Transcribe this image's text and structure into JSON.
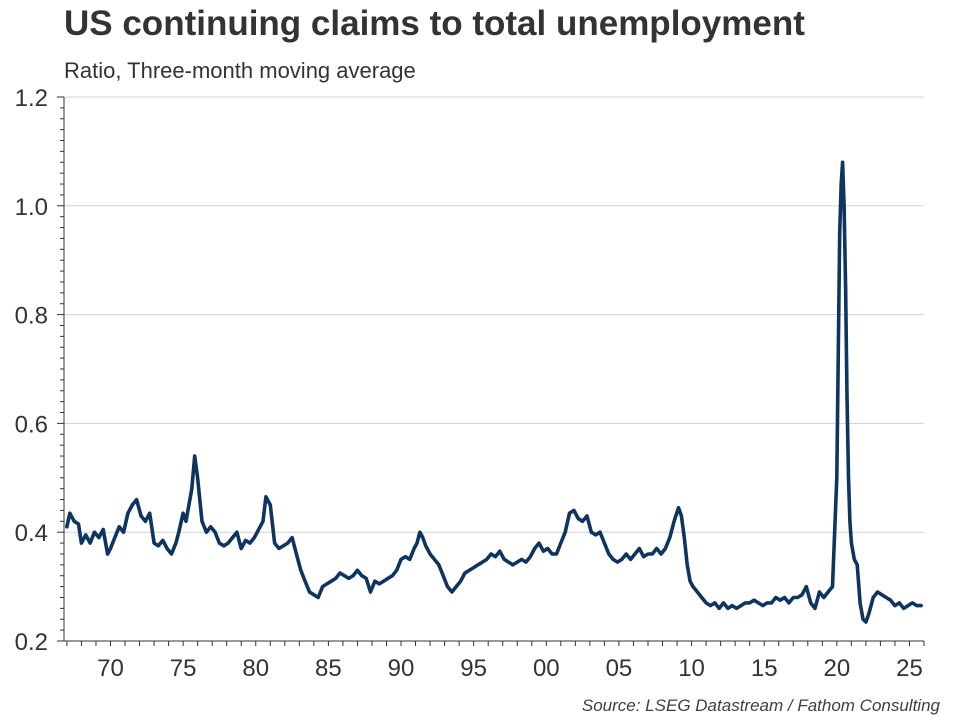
{
  "title": "US continuing claims to total unemployment",
  "subtitle": "Ratio, Three-month moving average",
  "source": "Source: LSEG Datastream / Fathom Consulting",
  "colors": {
    "line": "#0e3460",
    "grid": "#d0d0d0",
    "axis": "#333333",
    "text": "#333333"
  },
  "chart_data": {
    "type": "line",
    "title": "US continuing claims to total unemployment",
    "subtitle": "Ratio, Three-month moving average",
    "xlabel": "",
    "ylabel": "",
    "xlim": [
      1966.8,
      2026.0
    ],
    "ylim": [
      0.2,
      1.2
    ],
    "grid": true,
    "legend": "none",
    "x_ticks": [
      1970,
      1975,
      1980,
      1985,
      1990,
      1995,
      2000,
      2005,
      2010,
      2015,
      2020,
      2025
    ],
    "x_tick_labels": [
      "70",
      "75",
      "80",
      "85",
      "90",
      "95",
      "00",
      "05",
      "10",
      "15",
      "20",
      "25"
    ],
    "y_ticks": [
      0.2,
      0.4,
      0.6,
      0.8,
      1.0,
      1.2
    ],
    "y_tick_labels": [
      "0.2",
      "0.4",
      "0.6",
      "0.8",
      "1.0",
      "1.2"
    ],
    "series": [
      {
        "x": [
          1967.0,
          1967.2,
          1967.5,
          1967.8,
          1968.0,
          1968.3,
          1968.6,
          1968.9,
          1969.2,
          1969.5,
          1969.8,
          1970.0,
          1970.3,
          1970.6,
          1970.9,
          1971.2,
          1971.5,
          1971.8,
          1972.1,
          1972.4,
          1972.7,
          1973.0,
          1973.3,
          1973.6,
          1973.9,
          1974.2,
          1974.5,
          1974.7,
          1975.0,
          1975.2,
          1975.4,
          1975.6,
          1975.8,
          1976.0,
          1976.3,
          1976.6,
          1976.9,
          1977.2,
          1977.5,
          1977.8,
          1978.1,
          1978.4,
          1978.7,
          1979.0,
          1979.3,
          1979.6,
          1979.9,
          1980.1,
          1980.3,
          1980.5,
          1980.7,
          1981.0,
          1981.3,
          1981.6,
          1981.9,
          1982.2,
          1982.5,
          1982.8,
          1983.1,
          1983.4,
          1983.7,
          1984.0,
          1984.3,
          1984.6,
          1984.9,
          1985.2,
          1985.5,
          1985.8,
          1986.1,
          1986.4,
          1986.7,
          1987.0,
          1987.3,
          1987.6,
          1987.9,
          1988.2,
          1988.5,
          1988.8,
          1989.1,
          1989.4,
          1989.7,
          1990.0,
          1990.3,
          1990.6,
          1990.9,
          1991.1,
          1991.3,
          1991.5,
          1991.7,
          1992.0,
          1992.3,
          1992.6,
          1992.9,
          1993.2,
          1993.5,
          1993.8,
          1994.1,
          1994.4,
          1994.7,
          1995.0,
          1995.3,
          1995.6,
          1995.9,
          1996.2,
          1996.5,
          1996.8,
          1997.1,
          1997.4,
          1997.7,
          1998.0,
          1998.3,
          1998.6,
          1998.9,
          1999.2,
          1999.5,
          1999.8,
          2000.1,
          2000.4,
          2000.7,
          2001.0,
          2001.3,
          2001.6,
          2001.9,
          2002.2,
          2002.5,
          2002.8,
          2003.1,
          2003.4,
          2003.7,
          2004.0,
          2004.3,
          2004.6,
          2004.9,
          2005.2,
          2005.5,
          2005.8,
          2006.1,
          2006.4,
          2006.7,
          2007.0,
          2007.3,
          2007.6,
          2007.9,
          2008.2,
          2008.5,
          2008.8,
          2009.1,
          2009.3,
          2009.5,
          2009.7,
          2009.9,
          2010.1,
          2010.4,
          2010.7,
          2011.0,
          2011.3,
          2011.6,
          2011.9,
          2012.2,
          2012.5,
          2012.8,
          2013.1,
          2013.4,
          2013.7,
          2014.0,
          2014.3,
          2014.6,
          2014.9,
          2015.2,
          2015.5,
          2015.8,
          2016.1,
          2016.4,
          2016.7,
          2017.0,
          2017.3,
          2017.6,
          2017.9,
          2018.2,
          2018.5,
          2018.8,
          2019.1,
          2019.4,
          2019.7,
          2020.0,
          2020.2,
          2020.3,
          2020.4,
          2020.5,
          2020.6,
          2020.7,
          2020.8,
          2020.9,
          2021.0,
          2021.2,
          2021.4,
          2021.6,
          2021.8,
          2022.0,
          2022.2,
          2022.5,
          2022.8,
          2023.1,
          2023.4,
          2023.7,
          2024.0,
          2024.3,
          2024.6,
          2024.9,
          2025.2,
          2025.5,
          2025.8
        ],
        "y": [
          0.41,
          0.435,
          0.42,
          0.415,
          0.38,
          0.395,
          0.38,
          0.4,
          0.39,
          0.405,
          0.36,
          0.37,
          0.39,
          0.41,
          0.4,
          0.435,
          0.45,
          0.46,
          0.43,
          0.42,
          0.435,
          0.38,
          0.375,
          0.385,
          0.37,
          0.36,
          0.38,
          0.4,
          0.435,
          0.42,
          0.45,
          0.48,
          0.54,
          0.5,
          0.42,
          0.4,
          0.41,
          0.4,
          0.38,
          0.375,
          0.38,
          0.39,
          0.4,
          0.37,
          0.385,
          0.38,
          0.39,
          0.4,
          0.41,
          0.42,
          0.465,
          0.45,
          0.38,
          0.37,
          0.375,
          0.38,
          0.39,
          0.36,
          0.33,
          0.31,
          0.29,
          0.285,
          0.28,
          0.3,
          0.305,
          0.31,
          0.315,
          0.325,
          0.32,
          0.315,
          0.32,
          0.33,
          0.32,
          0.315,
          0.29,
          0.31,
          0.305,
          0.31,
          0.315,
          0.32,
          0.33,
          0.35,
          0.355,
          0.35,
          0.37,
          0.38,
          0.4,
          0.39,
          0.375,
          0.36,
          0.35,
          0.34,
          0.32,
          0.3,
          0.29,
          0.3,
          0.31,
          0.325,
          0.33,
          0.335,
          0.34,
          0.345,
          0.35,
          0.36,
          0.355,
          0.365,
          0.35,
          0.345,
          0.34,
          0.345,
          0.35,
          0.345,
          0.355,
          0.37,
          0.38,
          0.365,
          0.37,
          0.36,
          0.36,
          0.38,
          0.4,
          0.435,
          0.44,
          0.425,
          0.42,
          0.43,
          0.4,
          0.395,
          0.4,
          0.38,
          0.36,
          0.35,
          0.345,
          0.35,
          0.36,
          0.35,
          0.36,
          0.37,
          0.355,
          0.36,
          0.36,
          0.37,
          0.36,
          0.37,
          0.39,
          0.42,
          0.445,
          0.43,
          0.39,
          0.34,
          0.31,
          0.3,
          0.29,
          0.28,
          0.27,
          0.265,
          0.27,
          0.26,
          0.27,
          0.26,
          0.265,
          0.26,
          0.265,
          0.27,
          0.27,
          0.275,
          0.27,
          0.265,
          0.27,
          0.27,
          0.28,
          0.275,
          0.28,
          0.27,
          0.28,
          0.28,
          0.285,
          0.3,
          0.27,
          0.26,
          0.29,
          0.28,
          0.29,
          0.3,
          0.5,
          0.95,
          1.04,
          1.08,
          1.0,
          0.85,
          0.65,
          0.5,
          0.42,
          0.38,
          0.35,
          0.34,
          0.27,
          0.24,
          0.235,
          0.25,
          0.28,
          0.29,
          0.285,
          0.28,
          0.275,
          0.265,
          0.27,
          0.26,
          0.265,
          0.27,
          0.265,
          0.265
        ]
      }
    ]
  }
}
